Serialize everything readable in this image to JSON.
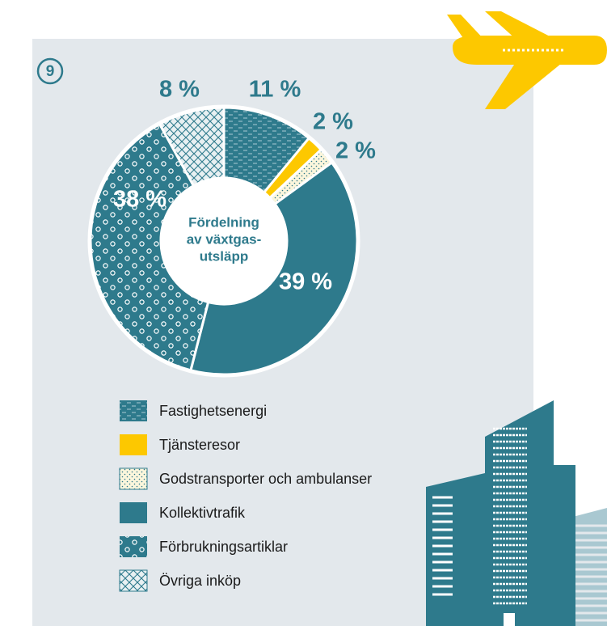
{
  "badge": "9",
  "chart_data": {
    "type": "pie",
    "center_label": [
      "Fördelning",
      "av växtgas-",
      "utsläpp"
    ],
    "categories": [
      "Fastighetsenergi",
      "Tjänsteresor",
      "Godstransporter och ambulanser",
      "Kollektivtrafik",
      "Förbrukningsartiklar",
      "Övriga inköp"
    ],
    "values": [
      11,
      2,
      2,
      39,
      38,
      8
    ],
    "value_labels": [
      "11 %",
      "2 %",
      "2 %",
      "39 %",
      "38 %",
      "8 %"
    ],
    "colors": [
      "#2e7a8c",
      "#fdc800",
      "#fbf6dc",
      "#2e7a8c",
      "#2e7a8c",
      "#e8f0f2"
    ],
    "patterns": [
      "dashes",
      "solid",
      "dots",
      "solid",
      "circles",
      "crosshatch"
    ]
  }
}
